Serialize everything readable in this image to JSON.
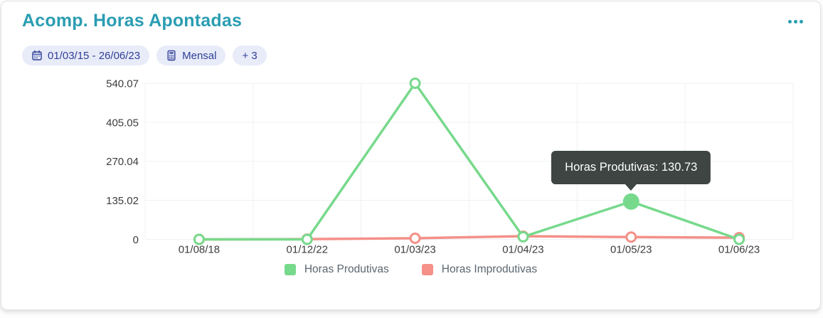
{
  "header": {
    "title": "Acomp. Horas Apontadas",
    "menu_icon": "ellipsis-horizontal-icon"
  },
  "filters": {
    "chips": [
      {
        "icon": "calendar-icon",
        "label": "01/03/15 - 26/06/23"
      },
      {
        "icon": "calculator-icon",
        "label": "Mensal"
      },
      {
        "icon": null,
        "label": "+ 3"
      }
    ]
  },
  "tooltip": {
    "series": "Horas Produtivas",
    "value": "130.73",
    "text": "Horas Produtivas: 130.73"
  },
  "chart_data": {
    "type": "line",
    "title": "",
    "xlabel": "",
    "ylabel": "",
    "categories": [
      "01/08/18",
      "01/12/22",
      "01/03/23",
      "01/04/23",
      "01/05/23",
      "01/06/23"
    ],
    "series": [
      {
        "name": "Horas Produtivas",
        "color": "#77d98c",
        "values": [
          0,
          0,
          540.07,
          9,
          130.73,
          0
        ],
        "highlight_index": 4
      },
      {
        "name": "Horas Improdutivas",
        "color": "#f49088",
        "values": [
          0,
          1,
          4,
          11,
          8,
          6
        ]
      }
    ],
    "y_ticks": [
      0,
      135.02,
      270.04,
      405.05,
      540.07
    ],
    "ylim": [
      0,
      540.07
    ],
    "grid": true,
    "legend_position": "bottom"
  },
  "colors": {
    "title": "#2a9db2",
    "chip_bg": "#e8ebf8",
    "chip_text": "#2e3f96",
    "grid": "#f0f1f3",
    "tooltip_bg": "#3e4543",
    "axis_text": "#3d3d3d",
    "legend_text": "#5b6670"
  }
}
